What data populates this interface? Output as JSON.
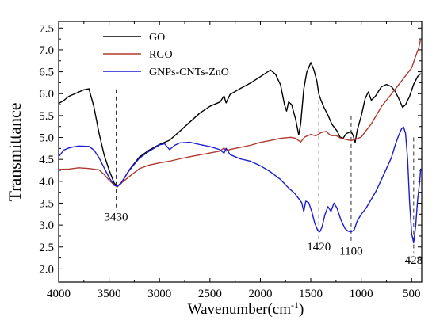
{
  "chart_data": {
    "type": "line",
    "title": "",
    "xlabel": "Wavenumber(cm",
    "xlabel_sup": "-1",
    "xlabel_close": ")",
    "ylabel": "Transmittance",
    "xlim": [
      4000,
      400
    ],
    "ylim": [
      1.7,
      7.65
    ],
    "x_reversed": true,
    "grid": false,
    "legend_position": "top-left",
    "x_ticks": [
      4000,
      3500,
      3000,
      2500,
      2000,
      1500,
      1000,
      500
    ],
    "x_tick_labels": [
      "4000",
      "3500",
      "3000",
      "2500",
      "2000",
      "1500",
      "1000",
      "500"
    ],
    "y_ticks": [
      2.0,
      2.5,
      3.0,
      3.5,
      4.0,
      4.5,
      5.0,
      5.5,
      6.0,
      6.5,
      7.0,
      7.5
    ],
    "y_tick_labels": [
      "2.0",
      "2.5",
      "3.0",
      "3.5",
      "4.0",
      "4.5",
      "5.0",
      "5.5",
      "6.0",
      "6.5",
      "7.0",
      "7.5"
    ],
    "series": [
      {
        "name": "GO",
        "color": "#000000",
        "points": [
          [
            4000,
            5.78
          ],
          [
            3950,
            5.85
          ],
          [
            3900,
            5.95
          ],
          [
            3850,
            6.0
          ],
          [
            3800,
            6.05
          ],
          [
            3750,
            6.1
          ],
          [
            3700,
            6.12
          ],
          [
            3650,
            5.7
          ],
          [
            3600,
            5.1
          ],
          [
            3550,
            4.6
          ],
          [
            3500,
            4.25
          ],
          [
            3450,
            3.95
          ],
          [
            3420,
            3.88
          ],
          [
            3380,
            3.95
          ],
          [
            3300,
            4.25
          ],
          [
            3200,
            4.55
          ],
          [
            3100,
            4.72
          ],
          [
            3000,
            4.85
          ],
          [
            2900,
            4.95
          ],
          [
            2800,
            5.15
          ],
          [
            2700,
            5.35
          ],
          [
            2600,
            5.55
          ],
          [
            2500,
            5.7
          ],
          [
            2400,
            5.8
          ],
          [
            2360,
            5.95
          ],
          [
            2340,
            5.8
          ],
          [
            2300,
            5.98
          ],
          [
            2200,
            6.12
          ],
          [
            2100,
            6.25
          ],
          [
            2000,
            6.4
          ],
          [
            1900,
            6.55
          ],
          [
            1850,
            6.45
          ],
          [
            1800,
            6.2
          ],
          [
            1760,
            5.75
          ],
          [
            1740,
            5.6
          ],
          [
            1720,
            5.8
          ],
          [
            1690,
            5.75
          ],
          [
            1650,
            5.4
          ],
          [
            1620,
            5.05
          ],
          [
            1600,
            5.3
          ],
          [
            1570,
            6.1
          ],
          [
            1540,
            6.5
          ],
          [
            1500,
            6.7
          ],
          [
            1470,
            6.55
          ],
          [
            1440,
            6.3
          ],
          [
            1420,
            6.0
          ],
          [
            1400,
            5.85
          ],
          [
            1370,
            5.7
          ],
          [
            1330,
            5.5
          ],
          [
            1290,
            5.3
          ],
          [
            1240,
            5.15
          ],
          [
            1210,
            5.0
          ],
          [
            1180,
            4.98
          ],
          [
            1150,
            5.1
          ],
          [
            1120,
            5.12
          ],
          [
            1100,
            5.15
          ],
          [
            1080,
            5.05
          ],
          [
            1060,
            4.88
          ],
          [
            1040,
            5.15
          ],
          [
            1000,
            5.5
          ],
          [
            960,
            5.9
          ],
          [
            930,
            6.05
          ],
          [
            900,
            5.85
          ],
          [
            860,
            5.95
          ],
          [
            800,
            6.15
          ],
          [
            750,
            6.2
          ],
          [
            700,
            6.15
          ],
          [
            660,
            6.05
          ],
          [
            620,
            5.85
          ],
          [
            590,
            5.7
          ],
          [
            560,
            5.75
          ],
          [
            520,
            5.95
          ],
          [
            480,
            6.2
          ],
          [
            440,
            6.4
          ],
          [
            410,
            6.45
          ]
        ]
      },
      {
        "name": "RGO",
        "color": "#b03a2e",
        "points": [
          [
            4000,
            4.28
          ],
          [
            3900,
            4.28
          ],
          [
            3800,
            4.3
          ],
          [
            3700,
            4.28
          ],
          [
            3600,
            4.25
          ],
          [
            3550,
            4.15
          ],
          [
            3500,
            4.02
          ],
          [
            3450,
            3.92
          ],
          [
            3420,
            3.88
          ],
          [
            3380,
            3.95
          ],
          [
            3300,
            4.12
          ],
          [
            3200,
            4.3
          ],
          [
            3100,
            4.38
          ],
          [
            3000,
            4.42
          ],
          [
            2900,
            4.45
          ],
          [
            2800,
            4.5
          ],
          [
            2700,
            4.55
          ],
          [
            2600,
            4.6
          ],
          [
            2500,
            4.65
          ],
          [
            2400,
            4.7
          ],
          [
            2360,
            4.75
          ],
          [
            2340,
            4.68
          ],
          [
            2300,
            4.74
          ],
          [
            2200,
            4.78
          ],
          [
            2100,
            4.82
          ],
          [
            2000,
            4.88
          ],
          [
            1900,
            4.92
          ],
          [
            1800,
            4.97
          ],
          [
            1700,
            5.0
          ],
          [
            1650,
            4.98
          ],
          [
            1600,
            4.9
          ],
          [
            1560,
            5.0
          ],
          [
            1500,
            5.08
          ],
          [
            1450,
            5.05
          ],
          [
            1400,
            5.12
          ],
          [
            1350,
            5.15
          ],
          [
            1300,
            5.05
          ],
          [
            1250,
            5.05
          ],
          [
            1200,
            4.98
          ],
          [
            1150,
            4.95
          ],
          [
            1100,
            4.92
          ],
          [
            1050,
            4.95
          ],
          [
            1000,
            5.0
          ],
          [
            950,
            5.15
          ],
          [
            900,
            5.3
          ],
          [
            850,
            5.5
          ],
          [
            800,
            5.7
          ],
          [
            750,
            5.85
          ],
          [
            700,
            6.0
          ],
          [
            650,
            6.15
          ],
          [
            600,
            6.3
          ],
          [
            550,
            6.45
          ],
          [
            500,
            6.6
          ],
          [
            460,
            6.85
          ],
          [
            430,
            7.05
          ],
          [
            410,
            7.25
          ]
        ]
      },
      {
        "name": "GNPs-CNTs-ZnO",
        "color": "#1c1cd0",
        "points": [
          [
            4000,
            4.55
          ],
          [
            3950,
            4.7
          ],
          [
            3900,
            4.75
          ],
          [
            3850,
            4.78
          ],
          [
            3800,
            4.8
          ],
          [
            3750,
            4.8
          ],
          [
            3700,
            4.8
          ],
          [
            3650,
            4.72
          ],
          [
            3600,
            4.55
          ],
          [
            3550,
            4.32
          ],
          [
            3500,
            4.1
          ],
          [
            3450,
            3.92
          ],
          [
            3420,
            3.88
          ],
          [
            3380,
            3.98
          ],
          [
            3300,
            4.25
          ],
          [
            3200,
            4.52
          ],
          [
            3100,
            4.68
          ],
          [
            3000,
            4.82
          ],
          [
            2950,
            4.85
          ],
          [
            2900,
            4.72
          ],
          [
            2850,
            4.82
          ],
          [
            2800,
            4.88
          ],
          [
            2700,
            4.9
          ],
          [
            2600,
            4.85
          ],
          [
            2500,
            4.8
          ],
          [
            2400,
            4.72
          ],
          [
            2360,
            4.65
          ],
          [
            2340,
            4.75
          ],
          [
            2300,
            4.6
          ],
          [
            2200,
            4.5
          ],
          [
            2100,
            4.45
          ],
          [
            2000,
            4.35
          ],
          [
            1900,
            4.22
          ],
          [
            1800,
            4.05
          ],
          [
            1720,
            3.85
          ],
          [
            1660,
            3.72
          ],
          [
            1620,
            3.6
          ],
          [
            1590,
            3.5
          ],
          [
            1570,
            3.3
          ],
          [
            1550,
            3.55
          ],
          [
            1520,
            3.5
          ],
          [
            1490,
            3.3
          ],
          [
            1460,
            3.05
          ],
          [
            1430,
            2.88
          ],
          [
            1410,
            2.86
          ],
          [
            1390,
            2.95
          ],
          [
            1360,
            3.25
          ],
          [
            1330,
            3.42
          ],
          [
            1300,
            3.3
          ],
          [
            1270,
            3.5
          ],
          [
            1240,
            3.4
          ],
          [
            1200,
            3.1
          ],
          [
            1160,
            2.92
          ],
          [
            1130,
            2.85
          ],
          [
            1100,
            2.84
          ],
          [
            1070,
            2.9
          ],
          [
            1040,
            3.1
          ],
          [
            1000,
            3.25
          ],
          [
            950,
            3.4
          ],
          [
            900,
            3.6
          ],
          [
            850,
            3.8
          ],
          [
            800,
            4.05
          ],
          [
            750,
            4.3
          ],
          [
            700,
            4.55
          ],
          [
            660,
            4.85
          ],
          [
            630,
            5.05
          ],
          [
            600,
            5.2
          ],
          [
            580,
            5.25
          ],
          [
            560,
            5.1
          ],
          [
            540,
            4.5
          ],
          [
            520,
            3.5
          ],
          [
            500,
            2.8
          ],
          [
            480,
            2.6
          ],
          [
            460,
            3.0
          ],
          [
            440,
            3.6
          ],
          [
            420,
            4.0
          ],
          [
            410,
            4.3
          ]
        ]
      }
    ],
    "annotations": [
      {
        "label": "3430",
        "x": 3430,
        "y_top": 6.1,
        "y_bottom": 3.88,
        "label_y": 3.1
      },
      {
        "label": "1420",
        "x": 1420,
        "y_top": 5.85,
        "y_bottom": 2.86,
        "label_y": 2.42
      },
      {
        "label": "1100",
        "x": 1100,
        "y_top": 5.5,
        "y_bottom": 2.84,
        "label_y": 2.32
      },
      {
        "label": "428",
        "x": 480,
        "y_top": 5.0,
        "y_bottom": 2.6,
        "label_y": 2.12
      }
    ]
  }
}
